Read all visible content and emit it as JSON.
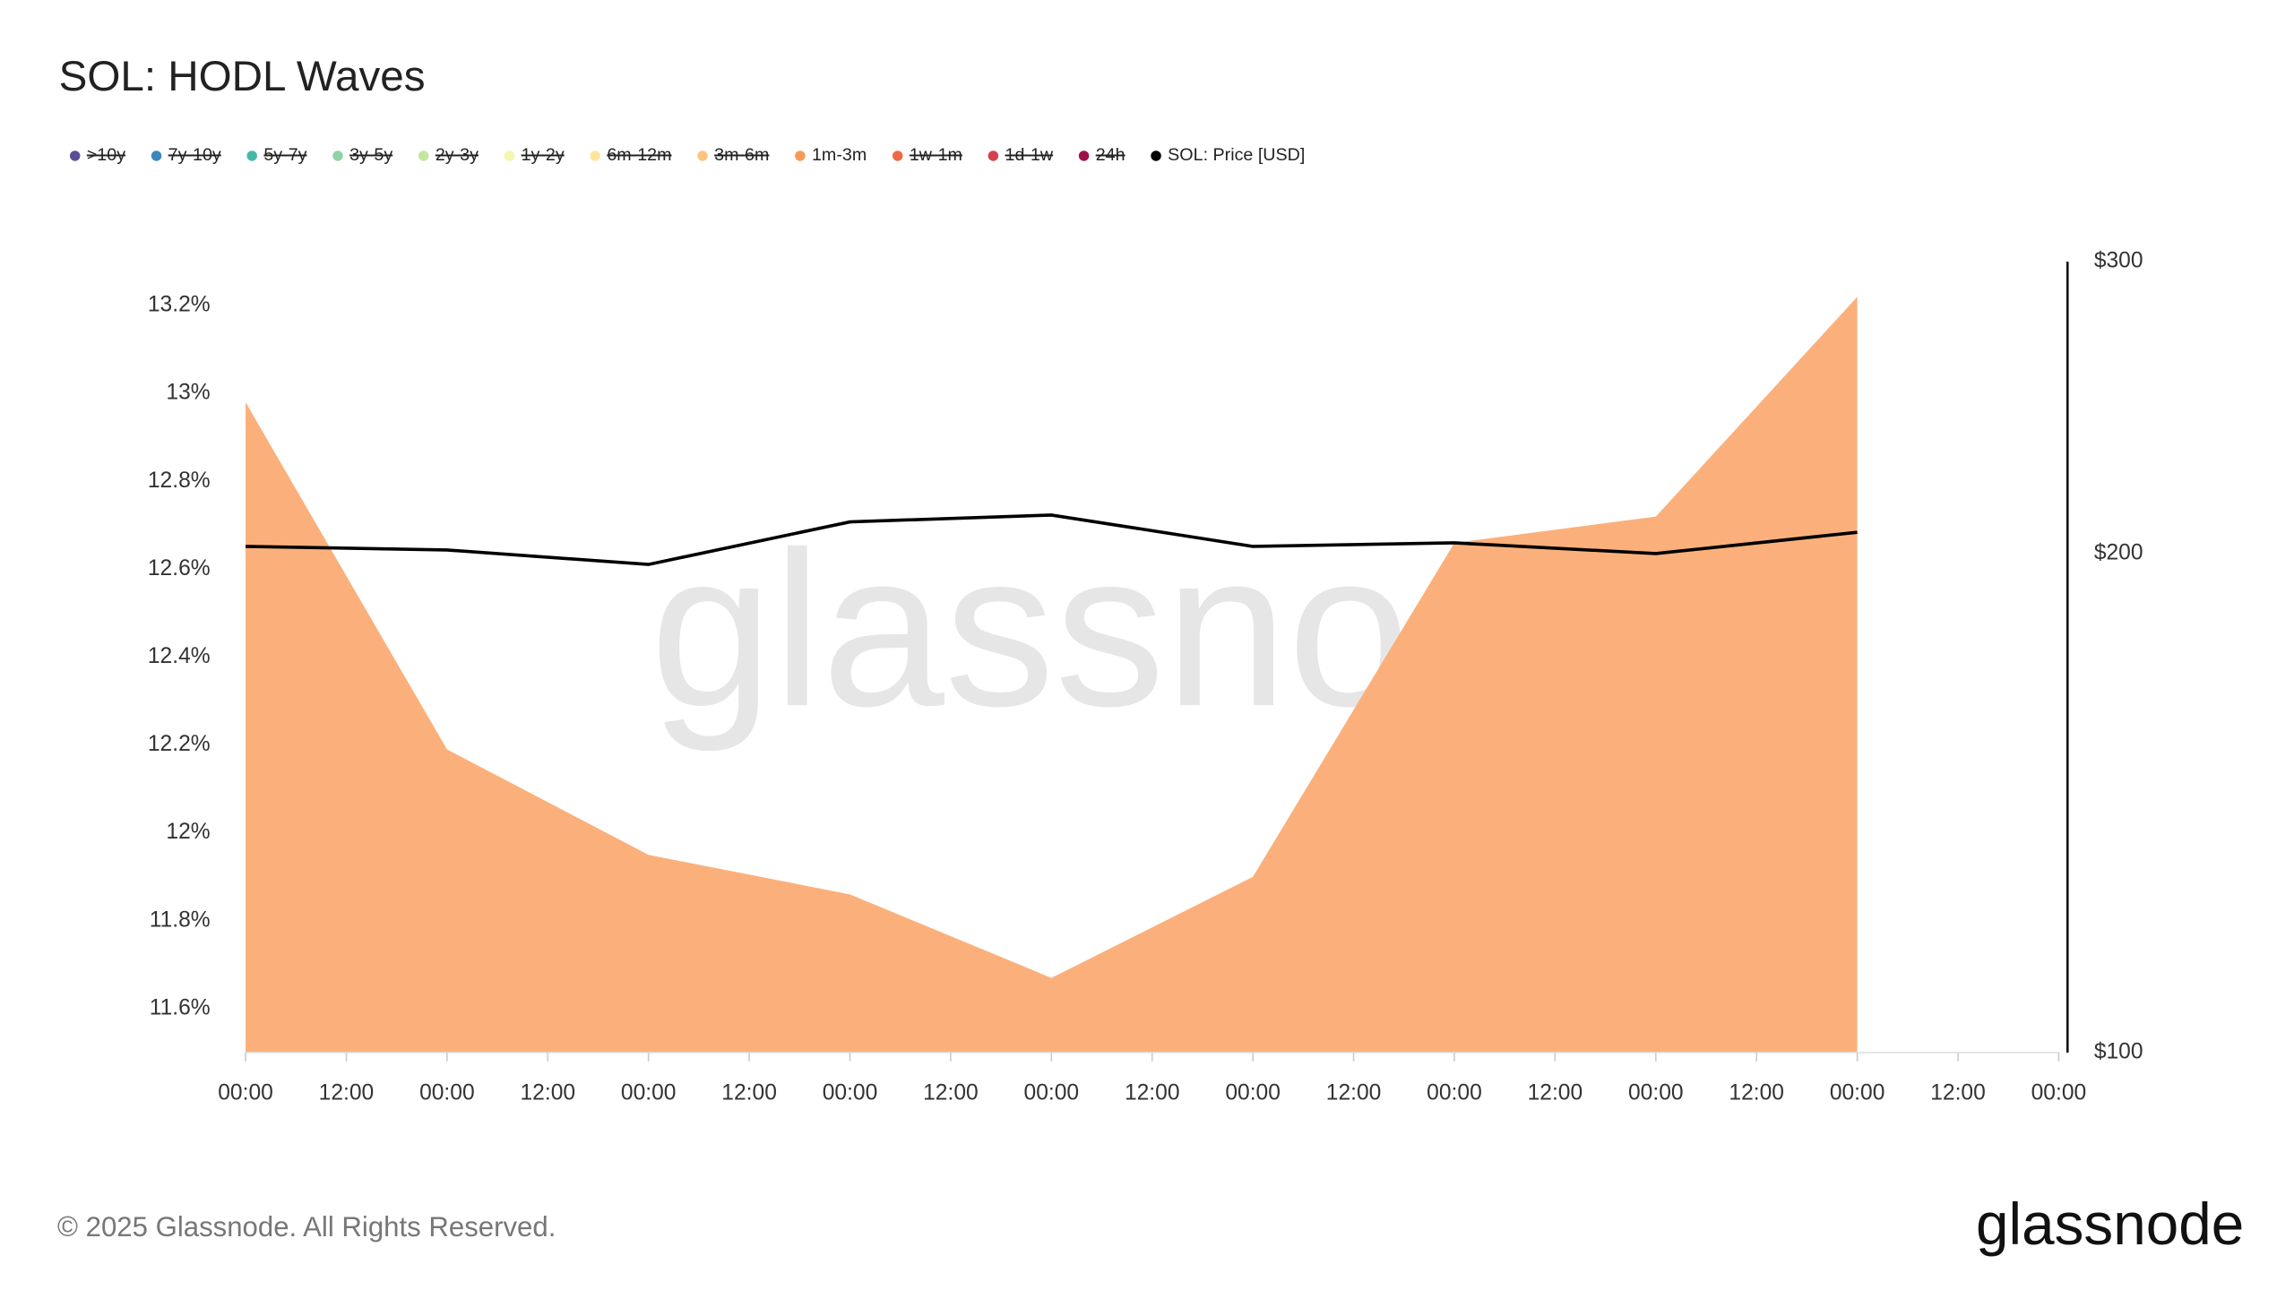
{
  "title": "SOL: HODL Waves",
  "watermark": "glassnode",
  "footer": {
    "copyright": "© 2025 Glassnode. All Rights Reserved.",
    "logo": "glassnode"
  },
  "chart_data": {
    "type": "area",
    "x": [
      0,
      24,
      48,
      72,
      96,
      120,
      144,
      168,
      192
    ],
    "xlim": [
      0,
      216
    ],
    "xticks": [
      {
        "value": 0,
        "label": "00:00"
      },
      {
        "value": 12,
        "label": "12:00"
      },
      {
        "value": 24,
        "label": "00:00"
      },
      {
        "value": 36,
        "label": "12:00"
      },
      {
        "value": 48,
        "label": "00:00"
      },
      {
        "value": 60,
        "label": "12:00"
      },
      {
        "value": 72,
        "label": "00:00"
      },
      {
        "value": 84,
        "label": "12:00"
      },
      {
        "value": 96,
        "label": "00:00"
      },
      {
        "value": 108,
        "label": "12:00"
      },
      {
        "value": 120,
        "label": "00:00"
      },
      {
        "value": 132,
        "label": "12:00"
      },
      {
        "value": 144,
        "label": "00:00"
      },
      {
        "value": 156,
        "label": "12:00"
      },
      {
        "value": 168,
        "label": "00:00"
      },
      {
        "value": 180,
        "label": "12:00"
      },
      {
        "value": 192,
        "label": "00:00"
      },
      {
        "value": 204,
        "label": "12:00"
      },
      {
        "value": 216,
        "label": "00:00"
      }
    ],
    "ylim": [
      11.5,
      13.3
    ],
    "yticks": [
      {
        "value": 11.6,
        "label": "11.6%"
      },
      {
        "value": 11.8,
        "label": "11.8%"
      },
      {
        "value": 12,
        "label": "12%"
      },
      {
        "value": 12.2,
        "label": "12.2%"
      },
      {
        "value": 12.4,
        "label": "12.4%"
      },
      {
        "value": 12.6,
        "label": "12.6%"
      },
      {
        "value": 12.8,
        "label": "12.8%"
      },
      {
        "value": 13,
        "label": "13%"
      },
      {
        "value": 13.2,
        "label": "13.2%"
      }
    ],
    "y2lim": [
      100,
      300
    ],
    "y2ticks": [
      {
        "value": 100,
        "label": "$100"
      },
      {
        "value": 200,
        "label": "$200"
      },
      {
        "value": 300,
        "label": "$300"
      }
    ],
    "y2_log": true,
    "series": [
      {
        "name": ">10y",
        "color": "#5b4e96",
        "hidden": true
      },
      {
        "name": "7y-10y",
        "color": "#3a87be",
        "hidden": true
      },
      {
        "name": "5y-7y",
        "color": "#46b8a9",
        "hidden": true
      },
      {
        "name": "3y-5y",
        "color": "#8fd3a4",
        "hidden": true
      },
      {
        "name": "2y-3y",
        "color": "#c5e69f",
        "hidden": true
      },
      {
        "name": "1y-2y",
        "color": "#f3f6ab",
        "hidden": true
      },
      {
        "name": "6m-12m",
        "color": "#fde69a",
        "hidden": true
      },
      {
        "name": "3m-6m",
        "color": "#fdc47e",
        "hidden": true
      },
      {
        "name": "1m-3m",
        "color": "#f79a57",
        "fill": "#fbb07b",
        "values": [
          12.98,
          12.19,
          11.95,
          11.86,
          11.67,
          11.9,
          12.66,
          12.72,
          13.22
        ]
      },
      {
        "name": "1w-1m",
        "color": "#ef6844",
        "hidden": true
      },
      {
        "name": "1d-1w",
        "color": "#d7404e",
        "hidden": true
      },
      {
        "name": "24h",
        "color": "#a0114a",
        "hidden": true
      },
      {
        "name": "SOL: Price [USD]",
        "color": "#000000",
        "axis": "y2",
        "values": [
          202,
          201,
          197,
          209,
          211,
          202,
          203,
          200,
          206
        ]
      }
    ]
  }
}
